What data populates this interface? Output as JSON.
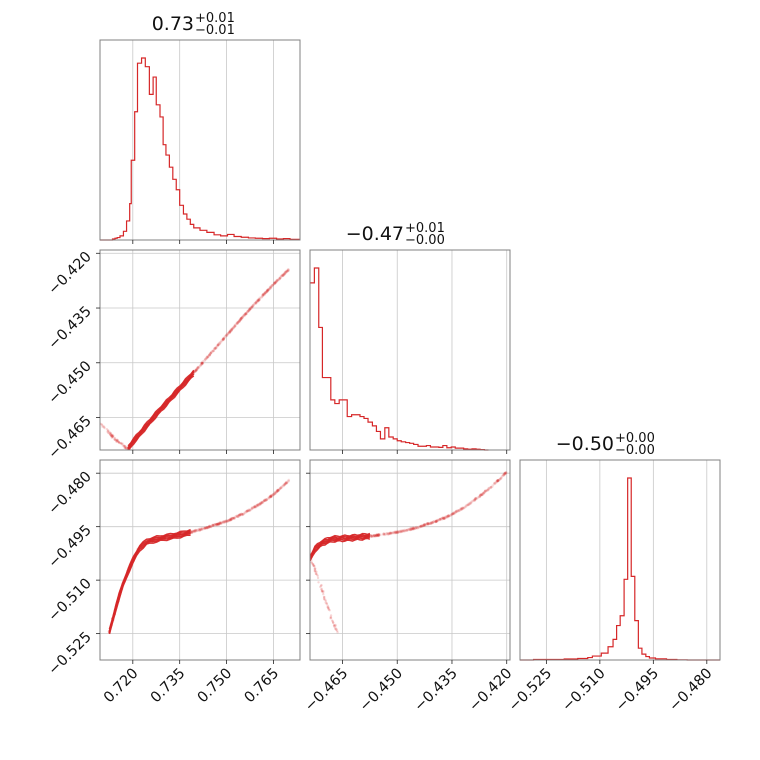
{
  "chart_data": {
    "type": "corner",
    "color": "#d62728",
    "params": [
      "p0",
      "p1",
      "p2"
    ],
    "ranges": [
      [
        0.7095,
        0.7735
      ],
      [
        -0.4739,
        -0.4191
      ],
      [
        -0.5324,
        -0.4763
      ]
    ],
    "ticks": [
      {
        "values": [
          0.72,
          0.735,
          0.75,
          0.765
        ],
        "labels": [
          "0.720",
          "0.735",
          "0.750",
          "0.765"
        ]
      },
      {
        "values": [
          -0.465,
          -0.45,
          -0.435,
          -0.42
        ],
        "labels": [
          "−0.465",
          "−0.450",
          "−0.435",
          "−0.420"
        ]
      },
      {
        "values": [
          -0.525,
          -0.51,
          -0.495,
          -0.48
        ],
        "labels": [
          "−0.525",
          "−0.510",
          "−0.495",
          "−0.480"
        ]
      }
    ],
    "titles": [
      {
        "median": "0.73",
        "plus": "+0.01",
        "minus": "−0.01"
      },
      {
        "median": "−0.47",
        "plus": "+0.01",
        "minus": "−0.00"
      },
      {
        "median": "−0.50",
        "plus": "+0.00",
        "minus": "−0.00"
      }
    ],
    "histograms": [
      {
        "edges": [
          0.7095,
          0.7135,
          0.7143,
          0.715,
          0.7159,
          0.717,
          0.718,
          0.719,
          0.7195,
          0.7206,
          0.7215,
          0.7228,
          0.724,
          0.7253,
          0.7265,
          0.7275,
          0.7287,
          0.7297,
          0.7306,
          0.7317,
          0.7328,
          0.7339,
          0.735,
          0.7362,
          0.7373,
          0.7384,
          0.7395,
          0.7415,
          0.7437,
          0.746,
          0.7481,
          0.7503,
          0.7524,
          0.7547,
          0.757,
          0.7592,
          0.7615,
          0.7637,
          0.766,
          0.7682,
          0.7703,
          0.7735
        ],
        "counts": [
          0,
          0.3,
          0.5,
          0.7,
          1.2,
          2.5,
          5.5,
          10.5,
          23,
          37,
          51,
          52.5,
          50,
          42,
          47,
          39,
          35.5,
          27.5,
          24.5,
          21,
          17.5,
          14.5,
          10,
          7.5,
          6,
          4.5,
          3.5,
          2.8,
          2.2,
          1.5,
          1.2,
          1.6,
          1.0,
          0.8,
          0.6,
          0.5,
          0.4,
          0.5,
          0.3,
          0.4,
          0.2
        ]
      },
      {
        "edges": [
          -0.4739,
          -0.4727,
          -0.4715,
          -0.4705,
          -0.4693,
          -0.4682,
          -0.4671,
          -0.4659,
          -0.4648,
          -0.4637,
          -0.4625,
          -0.4614,
          -0.4602,
          -0.4591,
          -0.458,
          -0.4568,
          -0.4557,
          -0.4546,
          -0.4534,
          -0.4523,
          -0.4511,
          -0.45,
          -0.4489,
          -0.4477,
          -0.4466,
          -0.4455,
          -0.4443,
          -0.4432,
          -0.442,
          -0.4409,
          -0.4398,
          -0.4386,
          -0.4375,
          -0.4364,
          -0.4352,
          -0.4341,
          -0.4329,
          -0.4318,
          -0.4307,
          -0.4295,
          -0.4284,
          -0.4273,
          -0.4261,
          -0.425
        ],
        "counts": [
          45,
          49,
          33,
          19.5,
          19.5,
          13.5,
          12.5,
          13.5,
          13.5,
          9,
          9.5,
          9.5,
          9,
          8.5,
          7.5,
          6.5,
          5,
          3,
          6,
          3.5,
          3,
          2.5,
          2.2,
          2,
          1.8,
          1.5,
          1,
          1,
          1.2,
          0.8,
          0.8,
          0.7,
          1.2,
          0.6,
          0.8,
          0.5,
          0.5,
          0.3,
          0.2,
          0.3,
          0.2,
          0.1,
          0
        ]
      },
      {
        "edges": [
          -0.5324,
          -0.5286,
          -0.52,
          -0.5162,
          -0.5134,
          -0.5121,
          -0.5096,
          -0.5077,
          -0.5063,
          -0.5053,
          -0.5043,
          -0.5032,
          -0.5022,
          -0.5012,
          -0.5002,
          -0.4992,
          -0.4982,
          -0.4971,
          -0.4961,
          -0.4944,
          -0.4913,
          -0.4884,
          -0.4855,
          -0.4763
        ],
        "counts": [
          0,
          0.5,
          1,
          1.5,
          2.5,
          4,
          7,
          13.5,
          21,
          35,
          45,
          82,
          185,
          85,
          40,
          12,
          6,
          3.5,
          2,
          1.2,
          0.5,
          0.2,
          0
        ]
      }
    ],
    "scatter": [
      {
        "x": "p0",
        "y": "p1",
        "main_curve": {
          "x": [
            0.7185,
            0.72,
            0.7225,
            0.725,
            0.7278,
            0.731,
            0.7345,
            0.738,
            0.742,
            0.746,
            0.75,
            0.754,
            0.758,
            0.762,
            0.766,
            0.77
          ],
          "y": [
            -0.4735,
            -0.4717,
            -0.4692,
            -0.4666,
            -0.4638,
            -0.4608,
            -0.4575,
            -0.4542,
            -0.4503,
            -0.4464,
            -0.4425,
            -0.4386,
            -0.4348,
            -0.4312,
            -0.4276,
            -0.4244
          ]
        },
        "dense_until_x": 0.7395,
        "tail_curve": {
          "x": [
            0.7095,
            0.712,
            0.7145,
            0.717,
            0.719
          ],
          "y": [
            -0.4665,
            -0.4688,
            -0.4711,
            -0.4727,
            -0.4739
          ]
        }
      },
      {
        "x": "p0",
        "y": "p2",
        "main_curve": {
          "x": [
            0.7125,
            0.7145,
            0.7165,
            0.7185,
            0.72,
            0.722,
            0.7245,
            0.728,
            0.732,
            0.736,
            0.74,
            0.745,
            0.75,
            0.755,
            0.76,
            0.765,
            0.77
          ],
          "y": [
            -0.5245,
            -0.518,
            -0.512,
            -0.5075,
            -0.5045,
            -0.5012,
            -0.4992,
            -0.4984,
            -0.4978,
            -0.4971,
            -0.4962,
            -0.4949,
            -0.4935,
            -0.4915,
            -0.489,
            -0.486,
            -0.482
          ]
        },
        "dense_until_x": 0.7385
      },
      {
        "x": "p1",
        "y": "p2",
        "main_curve": {
          "x": [
            -0.4739,
            -0.4725,
            -0.4705,
            -0.468,
            -0.465,
            -0.462,
            -0.459,
            -0.456,
            -0.452,
            -0.448,
            -0.444,
            -0.44,
            -0.436,
            -0.432,
            -0.428,
            -0.424,
            -0.42
          ],
          "y": [
            -0.504,
            -0.5012,
            -0.4995,
            -0.4985,
            -0.4983,
            -0.4981,
            -0.4978,
            -0.4975,
            -0.4969,
            -0.4961,
            -0.4951,
            -0.4937,
            -0.4921,
            -0.4898,
            -0.4869,
            -0.4836,
            -0.4797
          ]
        },
        "dense_until_x": -0.4575,
        "tail_curve": {
          "x": [
            -0.4739,
            -0.472,
            -0.47,
            -0.468,
            -0.4665
          ],
          "y": [
            -0.5032,
            -0.5085,
            -0.5145,
            -0.5205,
            -0.5245
          ]
        }
      }
    ]
  }
}
